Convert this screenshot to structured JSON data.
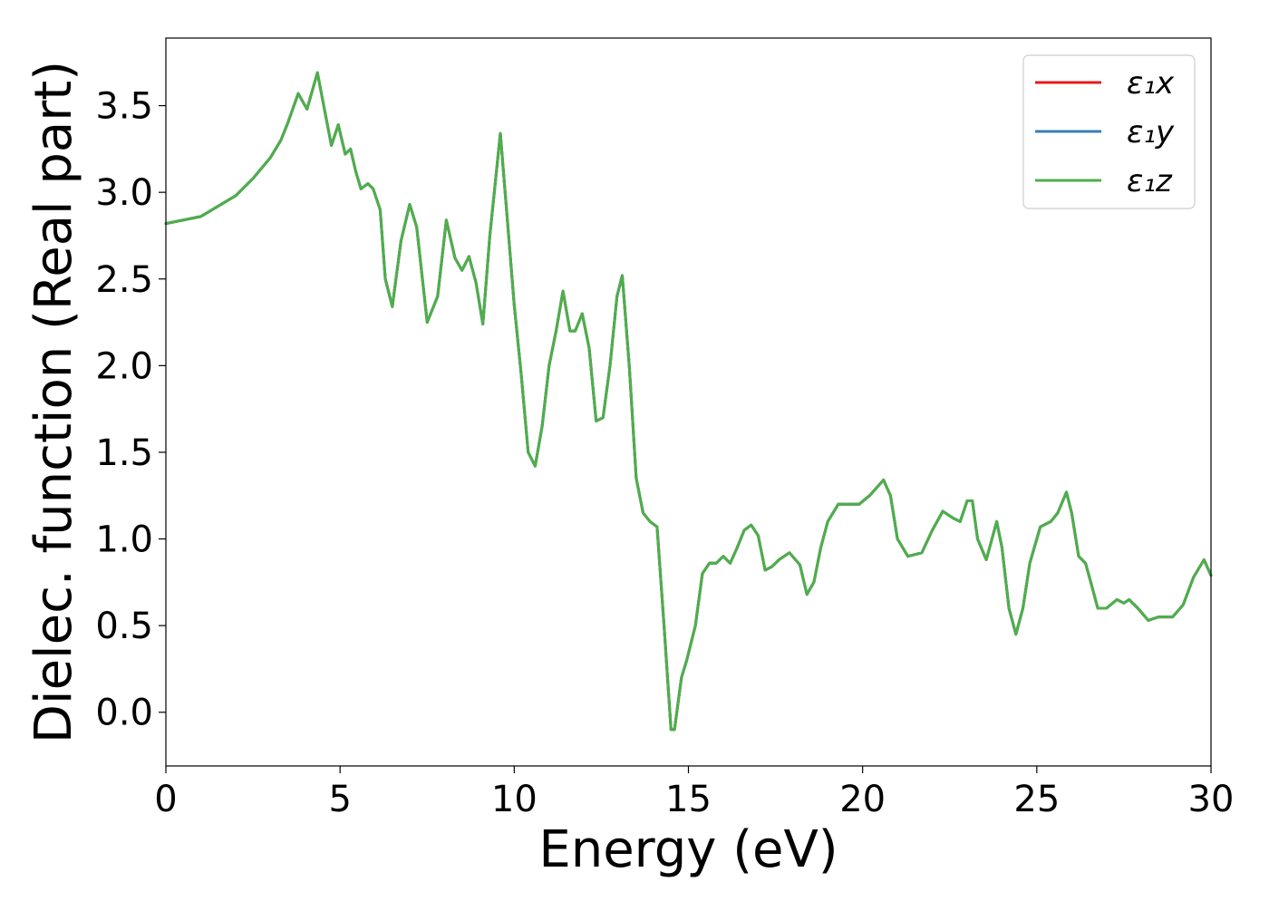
{
  "chart_data": {
    "type": "line",
    "xlabel": "Energy (eV)",
    "ylabel": "Dielec. function (Real part)",
    "xlim": [
      0,
      30
    ],
    "ylim": [
      -0.31,
      3.89
    ],
    "xticks": [
      0,
      5,
      10,
      15,
      20,
      25,
      30
    ],
    "xtick_labels": [
      "0",
      "5",
      "10",
      "15",
      "20",
      "25",
      "30"
    ],
    "yticks": [
      0.0,
      0.5,
      1.0,
      1.5,
      2.0,
      2.5,
      3.0,
      3.5
    ],
    "ytick_labels": [
      "0.0",
      "0.5",
      "1.0",
      "1.5",
      "2.0",
      "2.5",
      "3.0",
      "3.5"
    ],
    "grid": false,
    "legend_position": "top-right",
    "series": [
      {
        "name": "ε₁x",
        "color": "#e41a1c"
      },
      {
        "name": "ε₁y",
        "color": "#377eb8"
      },
      {
        "name": "ε₁z",
        "color": "#4daf4a"
      }
    ],
    "x": [
      0,
      1,
      2,
      2.5,
      3,
      3.3,
      3.5,
      3.8,
      4.05,
      4.35,
      4.55,
      4.75,
      4.95,
      5.15,
      5.3,
      5.45,
      5.6,
      5.8,
      5.95,
      6.15,
      6.3,
      6.5,
      6.75,
      7.0,
      7.2,
      7.5,
      7.8,
      8.05,
      8.3,
      8.5,
      8.7,
      8.9,
      9.1,
      9.3,
      9.6,
      9.8,
      10.0,
      10.2,
      10.4,
      10.6,
      10.8,
      11.0,
      11.2,
      11.4,
      11.6,
      11.75,
      11.95,
      12.15,
      12.35,
      12.55,
      12.75,
      12.95,
      13.1,
      13.3,
      13.5,
      13.7,
      13.9,
      14.1,
      14.3,
      14.5,
      14.6,
      14.8,
      14.95,
      15.2,
      15.4,
      15.6,
      15.8,
      16.0,
      16.2,
      16.4,
      16.6,
      16.8,
      17.0,
      17.2,
      17.4,
      17.6,
      17.9,
      18.2,
      18.4,
      18.6,
      18.8,
      19.0,
      19.3,
      19.6,
      19.9,
      20.2,
      20.6,
      20.8,
      21.0,
      21.3,
      21.7,
      22.0,
      22.3,
      22.6,
      22.8,
      23.0,
      23.15,
      23.3,
      23.55,
      23.85,
      24.0,
      24.2,
      24.4,
      24.6,
      24.8,
      25.1,
      25.4,
      25.6,
      25.85,
      26.0,
      26.2,
      26.4,
      26.55,
      26.75,
      27.0,
      27.3,
      27.5,
      27.65,
      27.9,
      28.2,
      28.5,
      28.9,
      29.2,
      29.5,
      29.8,
      30.0
    ],
    "values": [
      2.82,
      2.86,
      2.98,
      3.08,
      3.2,
      3.3,
      3.4,
      3.57,
      3.48,
      3.69,
      3.48,
      3.27,
      3.39,
      3.22,
      3.25,
      3.12,
      3.02,
      3.05,
      3.02,
      2.9,
      2.5,
      2.34,
      2.72,
      2.93,
      2.8,
      2.25,
      2.4,
      2.84,
      2.62,
      2.55,
      2.63,
      2.48,
      2.24,
      2.75,
      3.34,
      2.85,
      2.35,
      1.95,
      1.5,
      1.42,
      1.65,
      2.0,
      2.2,
      2.43,
      2.2,
      2.2,
      2.3,
      2.1,
      1.68,
      1.7,
      2.0,
      2.4,
      2.52,
      2.0,
      1.35,
      1.15,
      1.1,
      1.07,
      0.5,
      -0.1,
      -0.1,
      0.2,
      0.3,
      0.5,
      0.8,
      0.86,
      0.86,
      0.9,
      0.86,
      0.95,
      1.05,
      1.08,
      1.02,
      0.82,
      0.84,
      0.88,
      0.92,
      0.85,
      0.68,
      0.75,
      0.95,
      1.1,
      1.2,
      1.2,
      1.2,
      1.25,
      1.34,
      1.25,
      1.0,
      0.9,
      0.92,
      1.05,
      1.16,
      1.12,
      1.1,
      1.22,
      1.22,
      1.0,
      0.88,
      1.1,
      0.95,
      0.6,
      0.45,
      0.6,
      0.86,
      1.07,
      1.1,
      1.15,
      1.27,
      1.15,
      0.9,
      0.86,
      0.75,
      0.6,
      0.6,
      0.65,
      0.63,
      0.65,
      0.6,
      0.53,
      0.55,
      0.55,
      0.62,
      0.78,
      0.88,
      0.79
    ]
  }
}
